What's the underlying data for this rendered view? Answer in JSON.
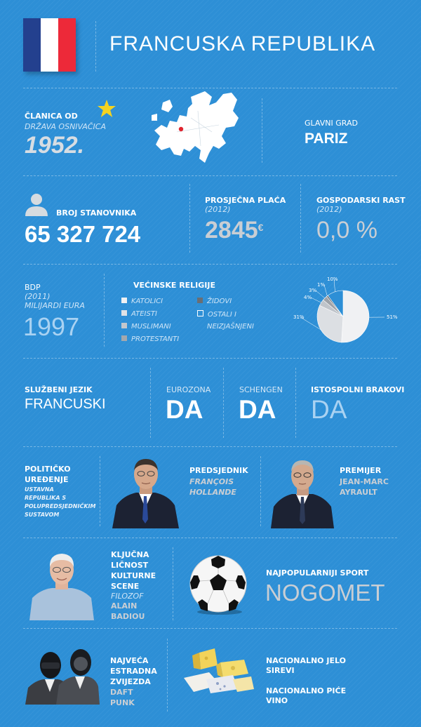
{
  "header": {
    "title": "FRANCUSKA REPUBLIKA"
  },
  "membership": {
    "label": "ČLANICA OD",
    "sub": "DRŽAVA OSNIVAČICA",
    "year": "1952."
  },
  "capital": {
    "label": "GLAVNI GRAD",
    "value": "PARIZ"
  },
  "population": {
    "label": "BROJ STANOVNIKA",
    "value": "65 327 724"
  },
  "salary": {
    "label": "PROSJEČNA PLAĆA",
    "year": "(2012)",
    "value": "2845",
    "unit": "€"
  },
  "growth": {
    "label": "GOSPODARSKI RAST",
    "year": "(2012)",
    "value": "0,0 %"
  },
  "gdp": {
    "label": "BDP",
    "year": "(2011)",
    "unit": "MILIJARDI EURA",
    "value": "1997"
  },
  "religions": {
    "title": "VEĆINSKE RELIGIJE",
    "items": [
      {
        "label": "KATOLICI",
        "color": "#f0f1f3"
      },
      {
        "label": "ATEISTI",
        "color": "#dfe2e6"
      },
      {
        "label": "MUSLIMANI",
        "color": "#c2c7cd"
      },
      {
        "label": "PROTESTANTI",
        "color": "#a3a8ae"
      },
      {
        "label": "ŽIDOVI",
        "color": "#6a6e73"
      },
      {
        "label": "OSTALI I",
        "label2": "NEIZJAŠNJENI",
        "color": "#2d8fd6"
      }
    ],
    "pie_labels": [
      "51%",
      "31%",
      "4%",
      "3%",
      "1%",
      "10%"
    ]
  },
  "chart_data": {
    "type": "pie",
    "categories": [
      "KATOLICI",
      "ATEISTI",
      "MUSLIMANI",
      "PROTESTANTI",
      "ŽIDOVI",
      "OSTALI I NEIZJAŠNJENI"
    ],
    "values": [
      51,
      31,
      4,
      3,
      1,
      10
    ],
    "colors": [
      "#f0f1f3",
      "#dcdfe3",
      "#bfc4ca",
      "#9da2a8",
      "#64686d",
      "#2d8fd6"
    ],
    "title": "VEĆINSKE RELIGIJE"
  },
  "language": {
    "label": "SLUŽBENI JEZIK",
    "value": "FRANCUSKI"
  },
  "eurozone": {
    "label": "EUROZONA",
    "value": "DA"
  },
  "schengen": {
    "label": "SCHENGEN",
    "value": "DA"
  },
  "samesex": {
    "label": "ISTOSPOLNI BRAKOVI",
    "value": "DA"
  },
  "politics": {
    "label1": "POLITIČKO",
    "label2": "UREĐENJE",
    "sub1": "USTAVNA",
    "sub2": "REPUBLIKA S",
    "sub3": "POLUPREDSJEDNIČKIM",
    "sub4": "SUSTAVOM"
  },
  "president": {
    "role": "PREDSJEDNIK",
    "name1": "FRANÇOIS",
    "name2": "HOLLANDE"
  },
  "premier": {
    "role": "PREMIJER",
    "name1": "JEAN-MARC",
    "name2": "AYRAULT"
  },
  "culture": {
    "l1": "KLJUČNA",
    "l2": "LIČNOST",
    "l3": "KULTURNE",
    "l4": "SCENE",
    "role": "FILOZOF",
    "name1": "ALAIN",
    "name2": "BADIOU"
  },
  "sport": {
    "label": "NAJPOPULARNIJI SPORT",
    "value": "NOGOMET"
  },
  "music": {
    "l1": "NAJVEĆA",
    "l2": "ESTRADNA",
    "l3": "ZVIJEZDA",
    "name1": "DAFT",
    "name2": "PUNK"
  },
  "food": {
    "label": "NACIONALNO JELO",
    "value": "SIREVI"
  },
  "drink": {
    "label": "NACIONALNO PIĆE",
    "value": "VINO"
  }
}
